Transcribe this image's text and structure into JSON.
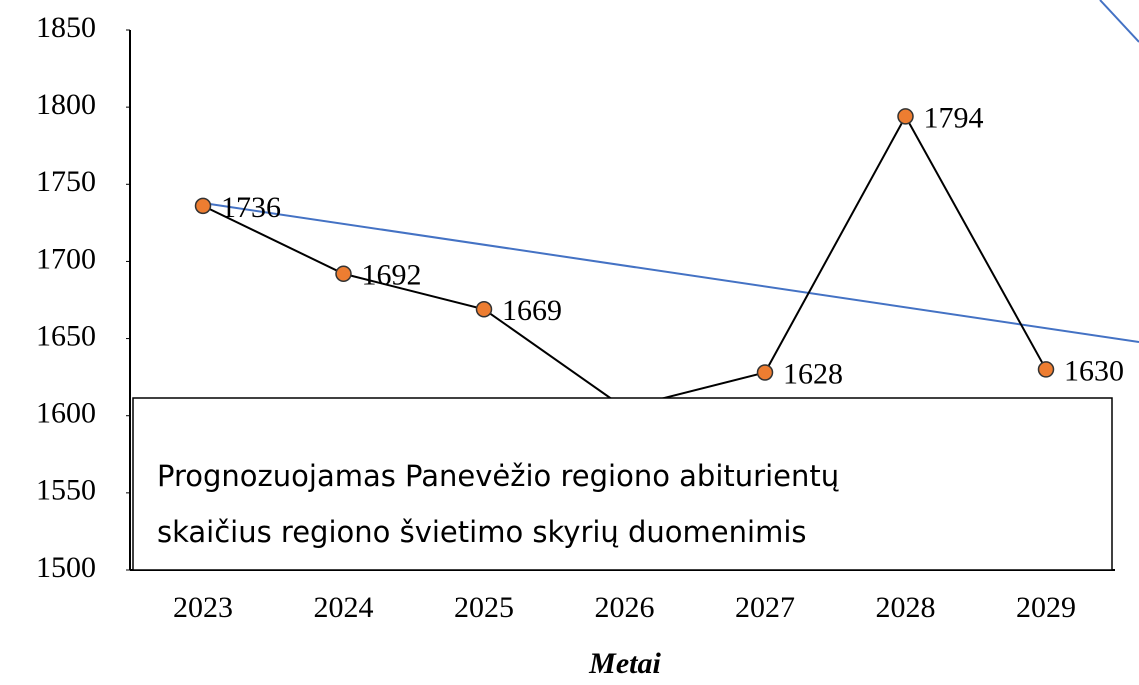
{
  "chart_data": {
    "type": "line",
    "x_label": "Metai",
    "categories": [
      "2023",
      "2024",
      "2025",
      "2026",
      "2027",
      "2028",
      "2029"
    ],
    "series": [
      {
        "color": "#ed7d31",
        "values": [
          1736,
          1692,
          1669,
          1605,
          1628,
          1794,
          1630
        ]
      }
    ],
    "ylim": [
      1500,
      1850
    ],
    "yticks": [
      1500,
      1550,
      1600,
      1650,
      1700,
      1750,
      1800,
      1850
    ],
    "annotation": [
      "Prognozuojamas Panevėžio regiono abiturientų",
      "skaičius regiono švietimo skyrių duomenimis"
    ]
  }
}
